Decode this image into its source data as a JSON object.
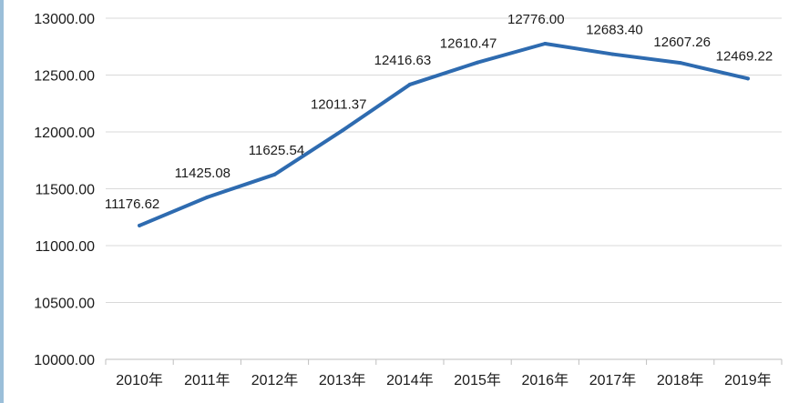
{
  "chart_data": {
    "type": "line",
    "title": "",
    "xlabel": "",
    "ylabel": "",
    "categories": [
      "2010年",
      "2011年",
      "2012年",
      "2013年",
      "2014年",
      "2015年",
      "2016年",
      "2017年",
      "2018年",
      "2019年"
    ],
    "series": [
      {
        "values": [
          11176.62,
          11425.08,
          11625.54,
          12011.37,
          12416.63,
          12610.47,
          12776.0,
          12683.4,
          12607.26,
          12469.22
        ],
        "color": "#2e6bb0"
      }
    ],
    "data_labels": [
      "11176.62",
      "11425.08",
      "11625.54",
      "12011.37",
      "12416.63",
      "12610.47",
      "12776.00",
      "12683.40",
      "12607.26",
      "12469.22"
    ],
    "y_ticks": [
      "10000.00",
      "10500.00",
      "11000.00",
      "11500.00",
      "12000.00",
      "12500.00",
      "13000.00"
    ],
    "ylim": [
      10000,
      13000
    ],
    "grid": true,
    "legend": "none",
    "colors": {
      "line": "#2e6bb0",
      "grid": "#d9d9d9",
      "axis": "#bfbfbf",
      "accent_strip": "#9bbfd9"
    }
  }
}
